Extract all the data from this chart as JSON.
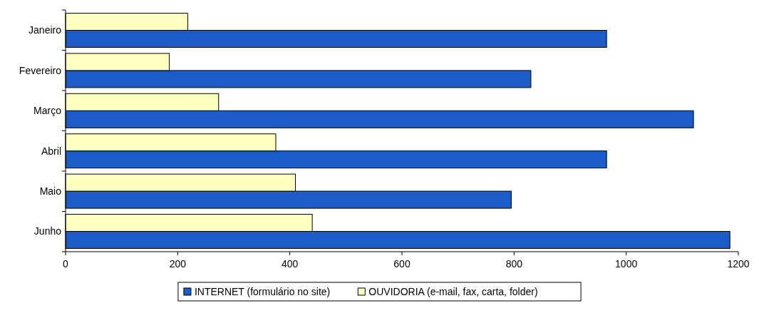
{
  "chart_data": {
    "type": "bar",
    "orientation": "horizontal",
    "categories": [
      "Janeiro",
      "Fevereiro",
      "Março",
      "Abril",
      "Maio",
      "Junho"
    ],
    "series": [
      {
        "name": "INTERNET (formulário no site)",
        "color": "#1c5cc8",
        "values": [
          965,
          830,
          1120,
          965,
          795,
          1185
        ]
      },
      {
        "name": "OUVIDORIA (e-mail, fax, carta, folder)",
        "color": "#ffffc0",
        "values": [
          218,
          185,
          273,
          375,
          410,
          440
        ]
      }
    ],
    "xlim": [
      0,
      1200
    ],
    "xticks": [
      0,
      200,
      400,
      600,
      800,
      1000,
      1200
    ],
    "grid": false,
    "legend": "bottom"
  }
}
